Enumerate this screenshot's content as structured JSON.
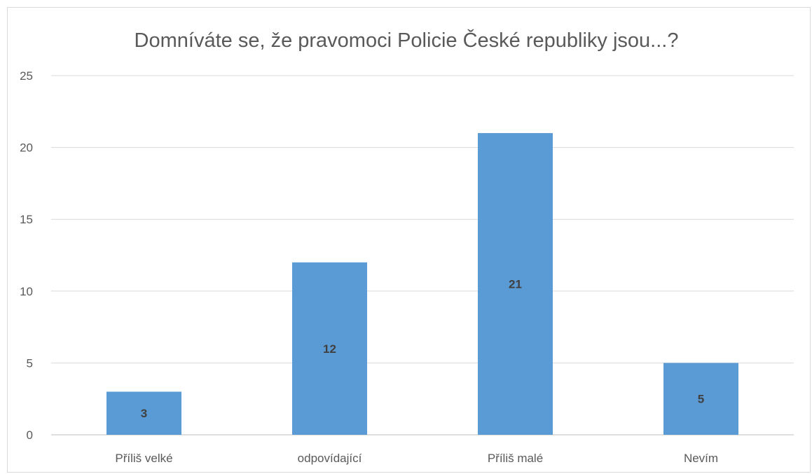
{
  "chart_data": {
    "type": "bar",
    "title": "Domníváte se, že pravomoci Policie České republiky jsou...?",
    "categories": [
      "Příliš velké",
      "odpovídající",
      "Příliš malé",
      "Nevím"
    ],
    "values": [
      3,
      12,
      21,
      5
    ],
    "data_labels": [
      "3",
      "12",
      "21",
      "5"
    ],
    "ylim": [
      0,
      25
    ],
    "yticks": [
      "0",
      "5",
      "10",
      "15",
      "20",
      "25"
    ],
    "grid": true,
    "legend": "none",
    "bar_color": "#5b9bd5"
  }
}
